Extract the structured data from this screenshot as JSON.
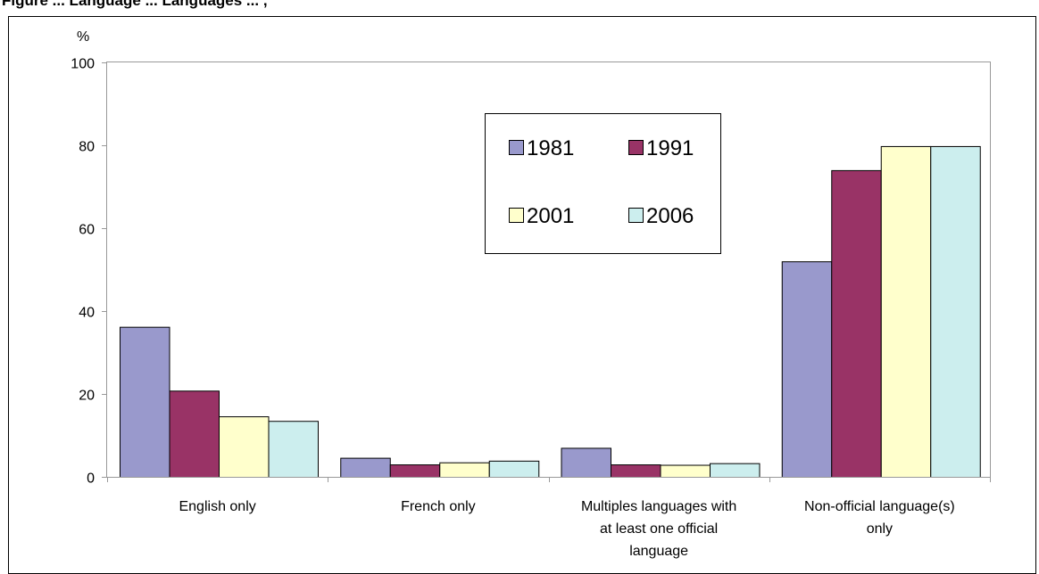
{
  "figure_title": "Figure ... Language ... Languages ... ,",
  "chart_data": {
    "type": "bar",
    "title": "",
    "ylabel": "%",
    "xlabel": "",
    "ylim": [
      0,
      100
    ],
    "yticks": [
      0,
      20,
      40,
      60,
      80,
      100
    ],
    "grid": false,
    "legend_position": "top-center",
    "categories": [
      [
        "English only"
      ],
      [
        "French only"
      ],
      [
        "Multiples languages with",
        "at least one official",
        "language"
      ],
      [
        "Non-official language(s)",
        "only"
      ]
    ],
    "series": [
      {
        "name": "1981",
        "color": "#9999cc",
        "values": [
          36.2,
          4.6,
          7.0,
          52.0
        ]
      },
      {
        "name": "1991",
        "color": "#993366",
        "values": [
          20.8,
          3.0,
          3.0,
          74.0
        ]
      },
      {
        "name": "2001",
        "color": "#ffffcc",
        "values": [
          14.6,
          3.5,
          2.9,
          79.8
        ]
      },
      {
        "name": "2006",
        "color": "#cceeee",
        "values": [
          13.5,
          3.9,
          3.3,
          79.8
        ]
      }
    ]
  }
}
